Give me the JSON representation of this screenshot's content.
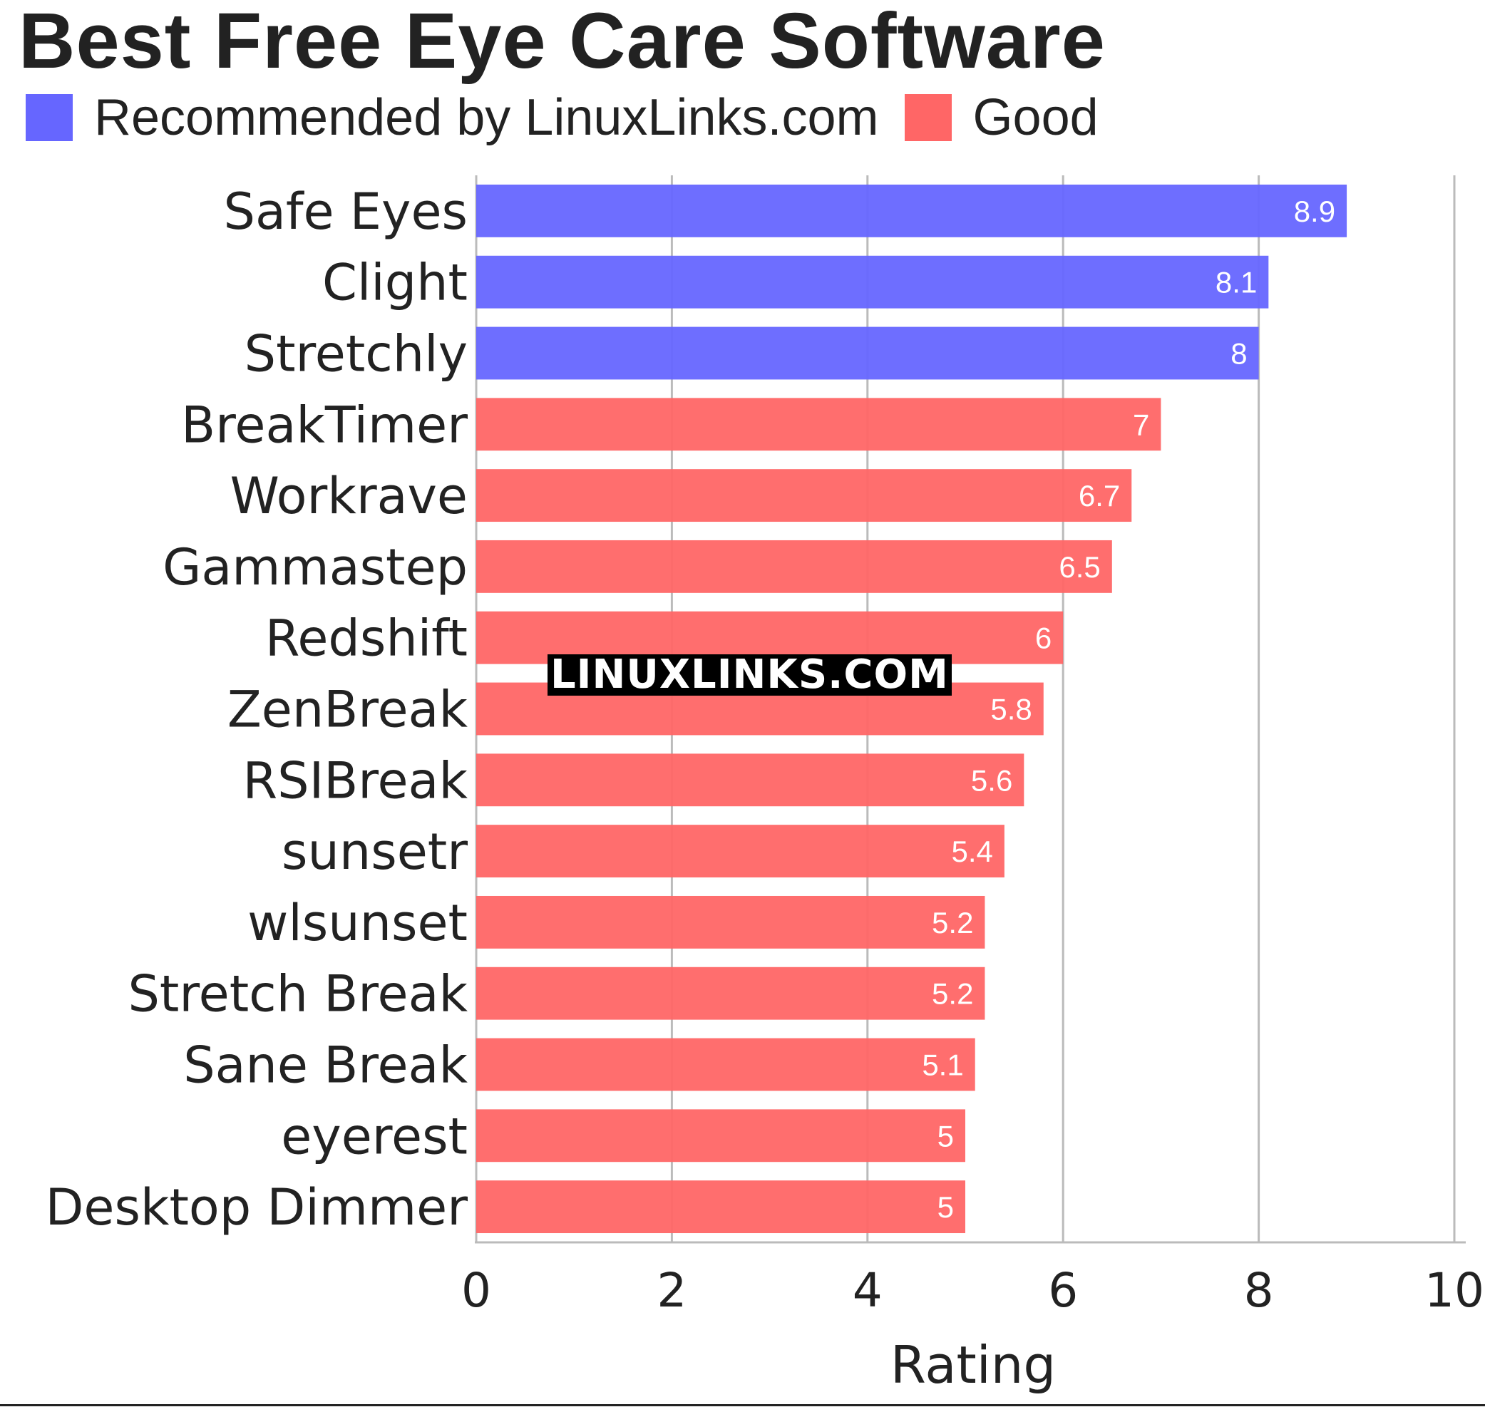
{
  "chart_data": {
    "type": "bar",
    "orientation": "horizontal",
    "title": "Best Free Eye Care Software",
    "xlabel": "Rating",
    "ylabel": "",
    "xlim": [
      0,
      10
    ],
    "xticks": [
      0,
      2,
      4,
      6,
      8,
      10
    ],
    "grid": true,
    "legend_position": "top-left",
    "legend": [
      {
        "name": "Recommended by LinuxLinks.com",
        "color": "#6666ff"
      },
      {
        "name": "Good",
        "color": "#ff6666"
      }
    ],
    "categories": [
      "Safe Eyes",
      "Clight",
      "Stretchly",
      "BreakTimer",
      "Workrave",
      "Gammastep",
      "Redshift",
      "ZenBreak",
      "RSIBreak",
      "sunsetr",
      "wlsunset",
      "Stretch Break",
      "Sane Break",
      "eyerest",
      "Desktop Dimmer"
    ],
    "values": [
      8.9,
      8.1,
      8,
      7,
      6.7,
      6.5,
      6,
      5.8,
      5.6,
      5.4,
      5.2,
      5.2,
      5.1,
      5,
      5
    ],
    "groups": [
      "Recommended by LinuxLinks.com",
      "Recommended by LinuxLinks.com",
      "Recommended by LinuxLinks.com",
      "Good",
      "Good",
      "Good",
      "Good",
      "Good",
      "Good",
      "Good",
      "Good",
      "Good",
      "Good",
      "Good",
      "Good"
    ]
  },
  "watermark": "LINUXLINKS.COM"
}
